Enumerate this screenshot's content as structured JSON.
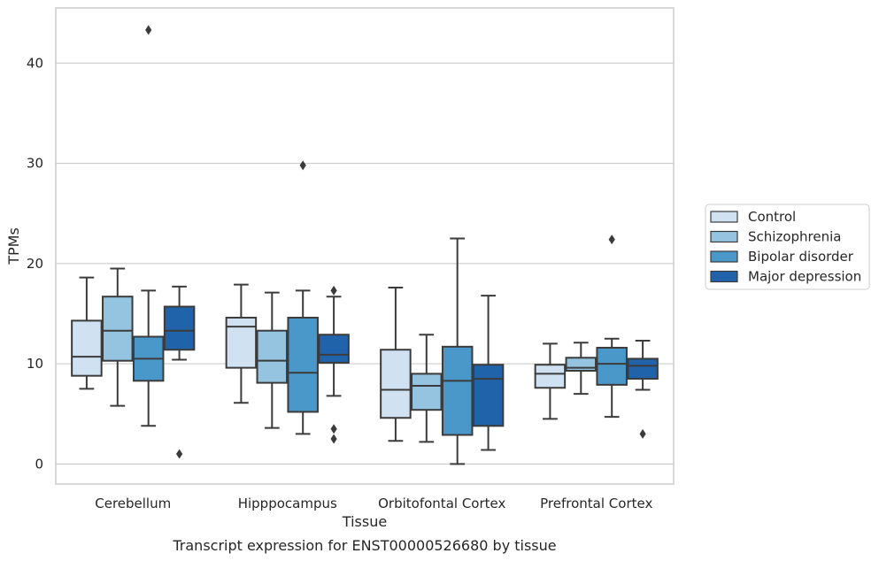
{
  "chart_data": {
    "type": "box",
    "caption": "Transcript expression for ENST00000526680 by tissue",
    "xlabel": "Tissue",
    "ylabel": "TPMs",
    "ylim": [
      -2,
      45.5
    ],
    "yticks": [
      0,
      10,
      20,
      30,
      40
    ],
    "grid": "horizontal",
    "legend_position": "right",
    "categories": [
      "Cerebellum",
      "Hipppocampus",
      "Orbitofontal Cortex",
      "Prefrontal Cortex"
    ],
    "series": [
      {
        "name": "Control",
        "color": "#d0e1f2",
        "boxes": [
          {
            "whisker_low": 7.5,
            "q1": 8.8,
            "median": 10.7,
            "q3": 14.3,
            "whisker_high": 18.6,
            "outliers": []
          },
          {
            "whisker_low": 6.1,
            "q1": 9.6,
            "median": 13.7,
            "q3": 14.6,
            "whisker_high": 17.9,
            "outliers": []
          },
          {
            "whisker_low": 2.3,
            "q1": 4.6,
            "median": 7.4,
            "q3": 11.4,
            "whisker_high": 17.6,
            "outliers": []
          },
          {
            "whisker_low": 4.5,
            "q1": 7.6,
            "median": 9.0,
            "q3": 9.9,
            "whisker_high": 12.0,
            "outliers": []
          }
        ]
      },
      {
        "name": "Schizophrenia",
        "color": "#94c4df",
        "boxes": [
          {
            "whisker_low": 5.8,
            "q1": 10.3,
            "median": 13.3,
            "q3": 16.7,
            "whisker_high": 19.5,
            "outliers": []
          },
          {
            "whisker_low": 3.6,
            "q1": 8.1,
            "median": 10.3,
            "q3": 13.3,
            "whisker_high": 17.1,
            "outliers": []
          },
          {
            "whisker_low": 2.2,
            "q1": 5.4,
            "median": 7.8,
            "q3": 9.0,
            "whisker_high": 12.9,
            "outliers": []
          },
          {
            "whisker_low": 7.0,
            "q1": 9.3,
            "median": 9.6,
            "q3": 10.6,
            "whisker_high": 12.1,
            "outliers": []
          }
        ]
      },
      {
        "name": "Bipolar disorder",
        "color": "#4a98c9",
        "boxes": [
          {
            "whisker_low": 3.8,
            "q1": 8.3,
            "median": 10.5,
            "q3": 12.7,
            "whisker_high": 17.3,
            "outliers": [
              43.3
            ]
          },
          {
            "whisker_low": 3.0,
            "q1": 5.2,
            "median": 9.1,
            "q3": 14.6,
            "whisker_high": 17.3,
            "outliers": [
              29.8
            ]
          },
          {
            "whisker_low": 0.0,
            "q1": 2.9,
            "median": 8.3,
            "q3": 11.7,
            "whisker_high": 22.5,
            "outliers": []
          },
          {
            "whisker_low": 4.7,
            "q1": 7.9,
            "median": 10.0,
            "q3": 11.6,
            "whisker_high": 12.5,
            "outliers": [
              22.4
            ]
          }
        ]
      },
      {
        "name": "Major depression",
        "color": "#2163aa",
        "boxes": [
          {
            "whisker_low": 10.4,
            "q1": 11.4,
            "median": 13.3,
            "q3": 15.7,
            "whisker_high": 17.7,
            "outliers": [
              1.0
            ]
          },
          {
            "whisker_low": 6.8,
            "q1": 10.1,
            "median": 10.9,
            "q3": 12.9,
            "whisker_high": 16.7,
            "outliers": [
              17.3,
              3.5,
              2.5
            ]
          },
          {
            "whisker_low": 1.4,
            "q1": 3.8,
            "median": 8.5,
            "q3": 9.9,
            "whisker_high": 16.8,
            "outliers": []
          },
          {
            "whisker_low": 7.4,
            "q1": 8.5,
            "median": 9.8,
            "q3": 10.5,
            "whisker_high": 12.3,
            "outliers": [
              3.0
            ]
          }
        ]
      }
    ]
  }
}
